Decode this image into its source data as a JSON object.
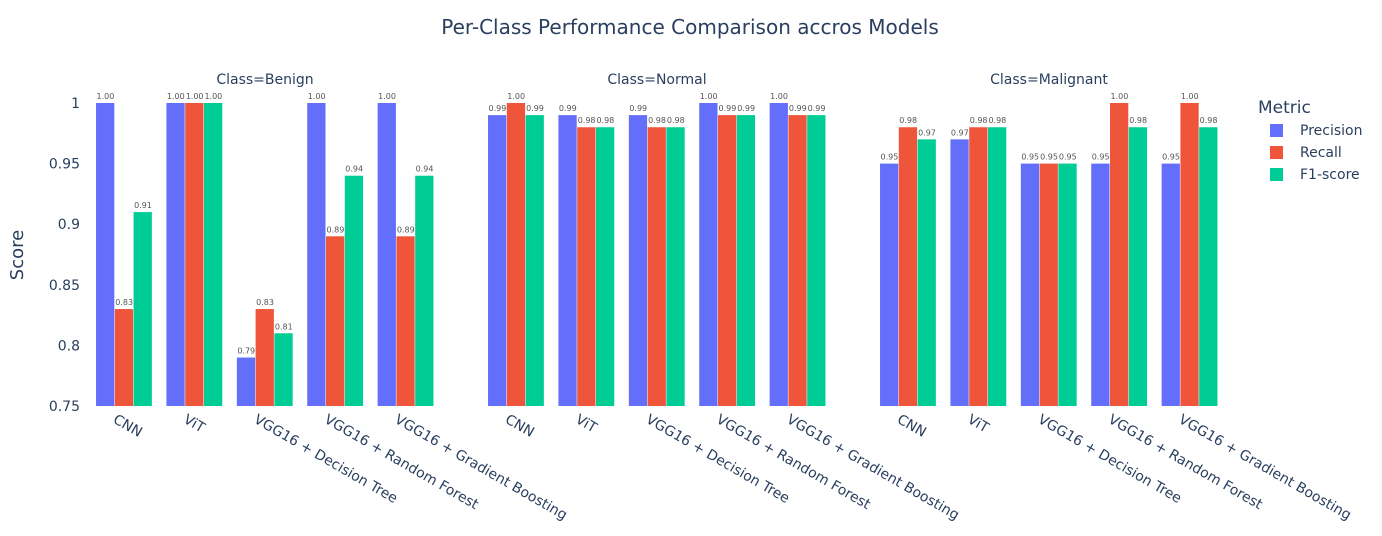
{
  "title": "Per-Class Performance Comparison accros Models",
  "chart_data": {
    "type": "bar",
    "title": "Per-Class Performance Comparison accros Models",
    "ylabel": "Score",
    "xlabel": "",
    "ylim": [
      0.75,
      1.0
    ],
    "yticks": [
      0.75,
      0.8,
      0.85,
      0.9,
      0.95,
      1
    ],
    "ytick_labels": [
      "0.75",
      "0.8",
      "0.85",
      "0.9",
      "0.95",
      "1"
    ],
    "grid": false,
    "legend": {
      "title": "Metric",
      "placement": "right"
    },
    "categories": [
      "CNN",
      "ViT",
      "VGG16 + Decision Tree",
      "VGG16 + Random Forest",
      "VGG16 + Gradient Boosting"
    ],
    "series": [
      {
        "name": "Precision",
        "color": "#636efa"
      },
      {
        "name": "Recall",
        "color": "#ef553b"
      },
      {
        "name": "F1-score",
        "color": "#00cc96"
      }
    ],
    "facets": [
      {
        "label": "Class=Benign",
        "values": {
          "Precision": [
            1.0,
            1.0,
            0.79,
            1.0,
            1.0
          ],
          "Recall": [
            0.83,
            1.0,
            0.83,
            0.89,
            0.89
          ],
          "F1-score": [
            0.91,
            1.0,
            0.81,
            0.94,
            0.94
          ]
        }
      },
      {
        "label": "Class=Normal",
        "values": {
          "Precision": [
            0.99,
            0.99,
            0.99,
            1.0,
            1.0
          ],
          "Recall": [
            1.0,
            0.98,
            0.98,
            0.99,
            0.99
          ],
          "F1-score": [
            0.99,
            0.98,
            0.98,
            0.99,
            0.99
          ]
        }
      },
      {
        "label": "Class=Malignant",
        "values": {
          "Precision": [
            0.95,
            0.97,
            0.95,
            0.95,
            0.95
          ],
          "Recall": [
            0.98,
            0.98,
            0.95,
            1.0,
            1.0
          ],
          "F1-score": [
            0.97,
            0.98,
            0.95,
            0.98,
            0.98
          ]
        }
      }
    ]
  }
}
